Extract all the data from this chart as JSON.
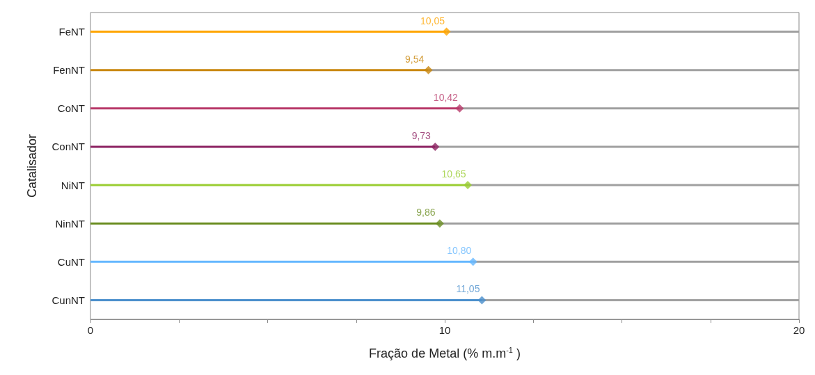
{
  "chart_data": {
    "type": "lollipop",
    "orientation": "horizontal",
    "xlabel": "Fração de Metal (% m.m$^{-1}$ )",
    "ylabel": "Catalisador",
    "categories": [
      "FeNT",
      "FenNT",
      "CoNT",
      "ConNT",
      "NiNT",
      "NinNT",
      "CuNT",
      "CunNT"
    ],
    "series": [
      {
        "colors": [
          "#ffa500",
          "#c9870e",
          "#b83a6a",
          "#8c2262",
          "#9acd32",
          "#6b8e23",
          "#66b8ff",
          "#4a8fcc"
        ],
        "values": [
          10.05,
          9.54,
          10.42,
          9.73,
          10.65,
          9.86,
          10.8,
          11.05
        ],
        "value_labels": [
          "10,05",
          "9,54",
          "10,42",
          "9,73",
          "10,65",
          "9,86",
          "10,80",
          "11,05"
        ]
      },
      {
        "type": "bar",
        "color": "#a0a0a0",
        "base": [
          10.05,
          9.54,
          10.42,
          9.73,
          10.65,
          9.86,
          10.8,
          11.05
        ],
        "values": [
          9.95,
          10.46,
          9.58,
          10.27,
          9.35,
          10.14,
          9.2,
          8.95
        ]
      }
    ],
    "xlim": [
      0,
      20
    ],
    "xticks": [
      0,
      {
        "value": 2.5,
        "label": null
      },
      {
        "value": 5,
        "label": null
      },
      {
        "value": 7.5,
        "label": null
      },
      10,
      {
        "value": 12.5,
        "label": null
      },
      {
        "value": 15,
        "label": null
      },
      {
        "value": 17.5,
        "label": null
      },
      20
    ],
    "marker": "diamond",
    "grid": false
  }
}
